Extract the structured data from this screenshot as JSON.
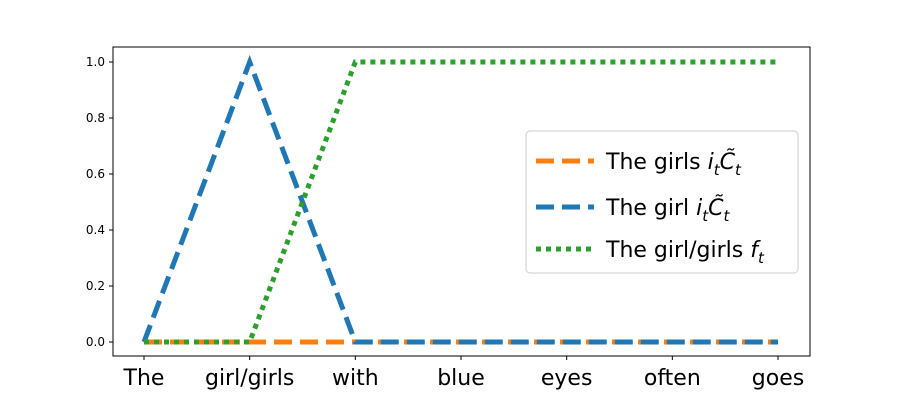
{
  "chart_data": {
    "type": "line",
    "categories": [
      "The",
      "girl/girls",
      "with",
      "blue",
      "eyes",
      "often",
      "goes"
    ],
    "ylim": [
      0.0,
      1.0
    ],
    "yticks": [
      "0.0",
      "0.2",
      "0.4",
      "0.6",
      "0.8",
      "1.0"
    ],
    "grid": false,
    "legend_location": "center-right",
    "series": [
      {
        "name": "The girls i_t C̃_t",
        "legend_prefix": "The girls ",
        "legend_math": "i_t C̃_t",
        "color": "#ff7f0e",
        "style": "dashed",
        "values": [
          0,
          0,
          0,
          0,
          0,
          0,
          0
        ]
      },
      {
        "name": "The girl i_t C̃_t",
        "legend_prefix": "The girl ",
        "legend_math": "i_t C̃_t",
        "color": "#1f77b4",
        "style": "dashed",
        "values": [
          0,
          1,
          0,
          0,
          0,
          0,
          0
        ]
      },
      {
        "name": "The girl/girls f_t",
        "legend_prefix": "The girl/girls ",
        "legend_math": "f_t",
        "color": "#2ca02c",
        "style": "dotted",
        "values": [
          0,
          0,
          1,
          1,
          1,
          1,
          1
        ]
      }
    ]
  }
}
